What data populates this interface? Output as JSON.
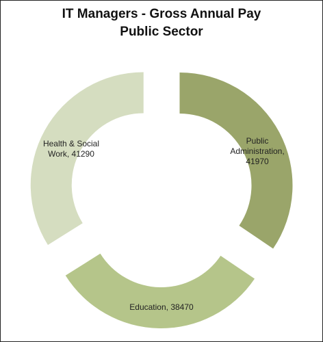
{
  "chart_data": {
    "type": "pie",
    "style": "exploded doughnut",
    "title_line1": "IT Managers - Gross Annual Pay",
    "title_line2": "Public Sector",
    "series": [
      {
        "values": [
          41970,
          38470,
          41290
        ],
        "categories": [
          "Public Administration",
          "Education",
          "Health & Social Work"
        ],
        "data_labels": [
          [
            "Public",
            "Administration,",
            "41970"
          ],
          [
            "Education, 38470"
          ],
          [
            "Health & Social",
            "Work, 41290"
          ]
        ]
      }
    ],
    "colors": [
      "#9aa56a",
      "#b5c58a",
      "#d5ddc0"
    ],
    "legend": "none"
  }
}
